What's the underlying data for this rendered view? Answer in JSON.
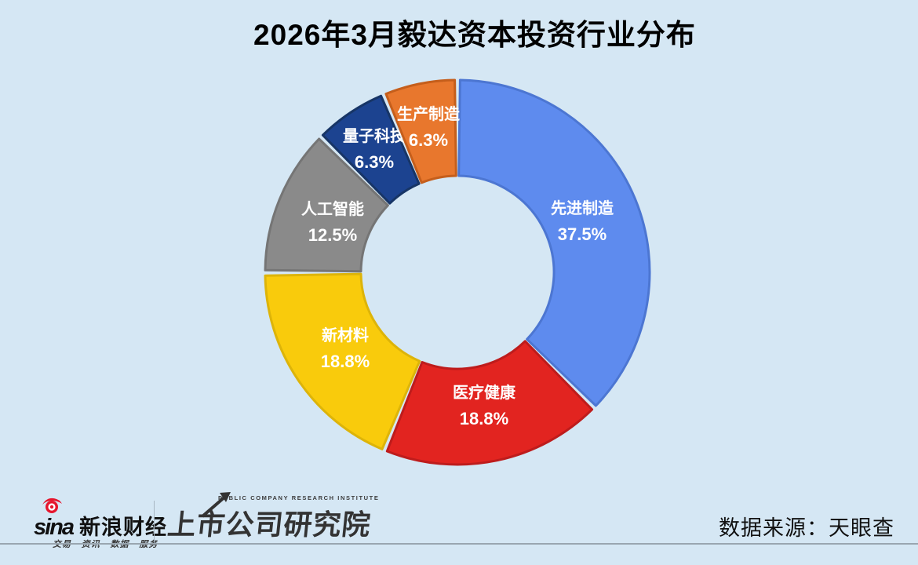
{
  "title": "2026年3月毅达资本投资行业分布",
  "chart_data": {
    "type": "pie",
    "variant": "donut",
    "title": "2026年3月毅达资本投资行业分布",
    "legend": "none",
    "label_position": "inside",
    "start_angle_deg": 0,
    "direction": "clockwise",
    "inner_radius_ratio": 0.5,
    "slices": [
      {
        "label": "先进制造",
        "value": 37.5,
        "pct_label": "37.5%",
        "color": "#5E8BEE",
        "border": "#4C76D2"
      },
      {
        "label": "医疗健康",
        "value": 18.8,
        "pct_label": "18.8%",
        "color": "#E22420",
        "border": "#BE1C1C"
      },
      {
        "label": "新材料",
        "value": 18.8,
        "pct_label": "18.8%",
        "color": "#F9CB0C",
        "border": "#DDB409"
      },
      {
        "label": "人工智能",
        "value": 12.5,
        "pct_label": "12.5%",
        "color": "#8A8A8A",
        "border": "#757575"
      },
      {
        "label": "量子科技",
        "value": 6.3,
        "pct_label": "6.3%",
        "color": "#1C4390",
        "border": "#173566"
      },
      {
        "label": "生产制造",
        "value": 6.3,
        "pct_label": "6.3%",
        "color": "#E8772D",
        "border": "#C55E1B"
      }
    ]
  },
  "footer": {
    "sina": {
      "brand_en": "sina",
      "brand_cn": "新浪财经",
      "tagline": "交易 · 资讯 · 数据 · 服务"
    },
    "institute": {
      "name_en": "PUBLIC COMPANY RESEARCH INSTITUTE",
      "name_cn": "上市公司研究院"
    },
    "datasource": "数据来源：天眼查"
  },
  "colors": {
    "background": "#D5E7F4",
    "title_text": "#000000",
    "slice_label_text": "#FFFFFF",
    "footer_rule": "#9AA6B0",
    "sina_red": "#E6162D",
    "logo_dark": "#333333"
  }
}
